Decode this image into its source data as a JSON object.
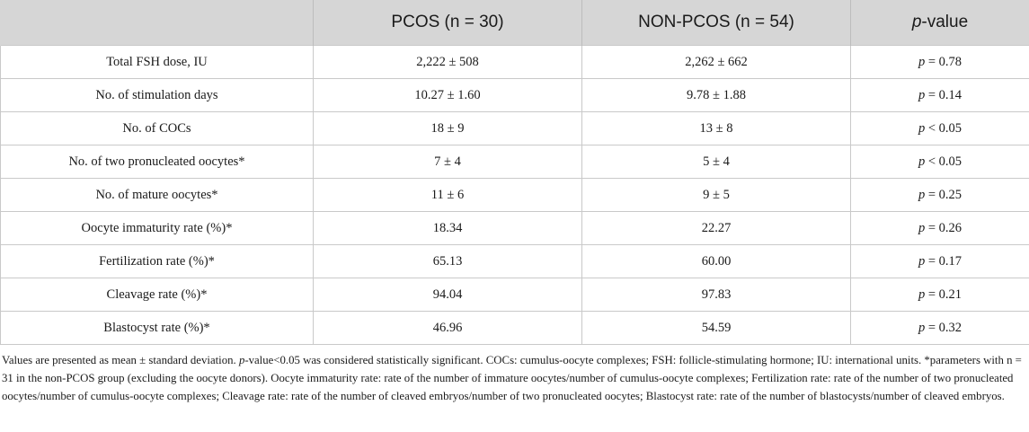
{
  "table": {
    "headers": {
      "col1": "",
      "col2": "PCOS (n = 30)",
      "col3": "NON-PCOS (n = 54)",
      "col4_italic": "p",
      "col4_rest": "-value"
    },
    "rows": [
      {
        "param": "Total FSH dose, IU",
        "pcos": "2,222 ± 508",
        "nonpcos": "2,262 ± 662",
        "p": "= 0.78"
      },
      {
        "param": "No. of stimulation days",
        "pcos": "10.27 ± 1.60",
        "nonpcos": "9.78 ± 1.88",
        "p": "= 0.14"
      },
      {
        "param": "No. of COCs",
        "pcos": "18 ± 9",
        "nonpcos": "13 ± 8",
        "p": "< 0.05"
      },
      {
        "param": "No. of two pronucleated oocytes*",
        "pcos": "7 ± 4",
        "nonpcos": "5 ± 4",
        "p": "< 0.05"
      },
      {
        "param": "No. of mature oocytes*",
        "pcos": "11 ± 6",
        "nonpcos": "9 ± 5",
        "p": "= 0.25"
      },
      {
        "param": "Oocyte immaturity rate (%)*",
        "pcos": "18.34",
        "nonpcos": "22.27",
        "p": "= 0.26"
      },
      {
        "param": "Fertilization rate (%)*",
        "pcos": "65.13",
        "nonpcos": "60.00",
        "p": "= 0.17"
      },
      {
        "param": "Cleavage rate (%)*",
        "pcos": "94.04",
        "nonpcos": "97.83",
        "p": "= 0.21"
      },
      {
        "param": "Blastocyst rate (%)*",
        "pcos": "46.96",
        "nonpcos": "54.59",
        "p": "= 0.32"
      }
    ]
  },
  "footnote": {
    "part1": "Values are presented as mean ± standard deviation. ",
    "p_italic": "p",
    "part2": "-value<0.05 was considered statistically significant. COCs: cumulus-oocyte complexes; FSH: follicle-stimulating hormone; IU: international units. *parameters with n = 31 in the non-PCOS group (excluding the oocyte donors). Oocyte immaturity rate: rate of the number of immature oocytes/number of cumulus-oocyte complexes; Fertilization rate: rate of the number of two pronucleated oocytes/number of cumulus-oocyte complexes; Cleavage rate: rate of the number of cleaved embryos/number of two pronucleated oocytes; Blastocyst rate: rate of the number of blastocysts/number of cleaved embryos."
  }
}
